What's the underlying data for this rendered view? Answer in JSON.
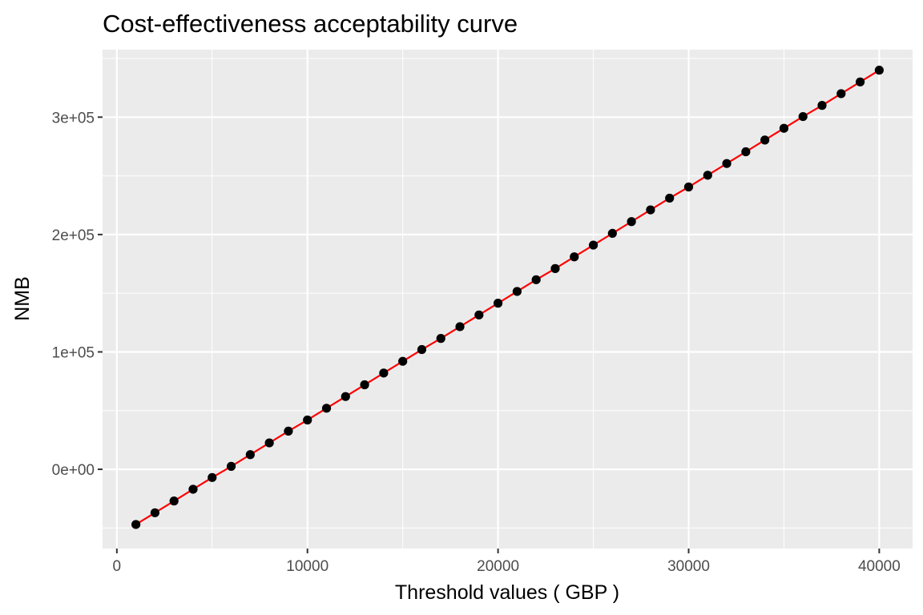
{
  "chart_data": {
    "type": "line",
    "title": "Cost-effectiveness acceptability curve",
    "xlabel": "Threshold values ( GBP )",
    "ylabel": "NMB",
    "xlim": [
      -750,
      41750
    ],
    "ylim": [
      -67500,
      357500
    ],
    "x_ticks": [
      0,
      10000,
      20000,
      30000,
      40000
    ],
    "x_tick_labels": [
      "0",
      "10000",
      "20000",
      "30000",
      "40000"
    ],
    "y_ticks": [
      0,
      100000,
      200000,
      300000
    ],
    "y_tick_labels": [
      "0e+00",
      "1e+05",
      "2e+05",
      "3e+05"
    ],
    "grid": true,
    "legend": "none",
    "line_color": "#ff0000",
    "point_color": "#000000",
    "panel_background": "#ebebeb",
    "grid_color": "#ffffff",
    "x": [
      1000,
      2000,
      3000,
      4000,
      5000,
      6000,
      7000,
      8000,
      9000,
      10000,
      11000,
      12000,
      13000,
      14000,
      15000,
      16000,
      17000,
      18000,
      19000,
      20000,
      21000,
      22000,
      23000,
      24000,
      25000,
      26000,
      27000,
      28000,
      29000,
      30000,
      31000,
      32000,
      33000,
      34000,
      35000,
      36000,
      37000,
      38000,
      39000,
      40000
    ],
    "y": [
      -47000,
      -37000,
      -27000,
      -17000,
      -7000,
      2500,
      12500,
      22500,
      32500,
      42000,
      52000,
      62000,
      72000,
      82000,
      92000,
      102000,
      111500,
      121500,
      131500,
      141500,
      151500,
      161500,
      171000,
      181000,
      191000,
      201000,
      211000,
      221000,
      231000,
      240500,
      250500,
      260500,
      270500,
      280500,
      290500,
      300500,
      310000,
      320000,
      330000,
      340000
    ]
  }
}
